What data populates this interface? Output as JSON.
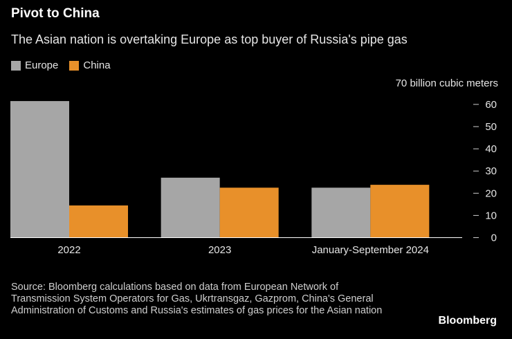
{
  "header": {
    "title": "Pivot to China",
    "subtitle": "The Asian nation is overtaking Europe as top buyer of Russia's pipe gas"
  },
  "footer": {
    "source": "Source: Bloomberg calculations based on data from European Network of Transmission System Operators for Gas, Ukrtransgaz, Gazprom, China's General Administration of Customs and Russia's estimates of gas prices for the Asian nation",
    "brand": "Bloomberg"
  },
  "chart_data": {
    "type": "bar",
    "title": "Pivot to China",
    "unit_label": "70 billion cubic meters",
    "categories": [
      "2022",
      "2023",
      "January-September 2024"
    ],
    "series": [
      {
        "name": "Europe",
        "color": "#a6a6a6",
        "values": [
          61.5,
          27,
          22.5
        ]
      },
      {
        "name": "China",
        "color": "#e8902a",
        "values": [
          14.5,
          22.5,
          23.8
        ]
      }
    ],
    "yticks": [
      0,
      10,
      20,
      30,
      40,
      50,
      60
    ],
    "ylim": [
      0,
      70
    ],
    "xlabel": "",
    "ylabel": "billion cubic meters",
    "grid": false,
    "legend": "top-left",
    "axis_side": "right"
  }
}
